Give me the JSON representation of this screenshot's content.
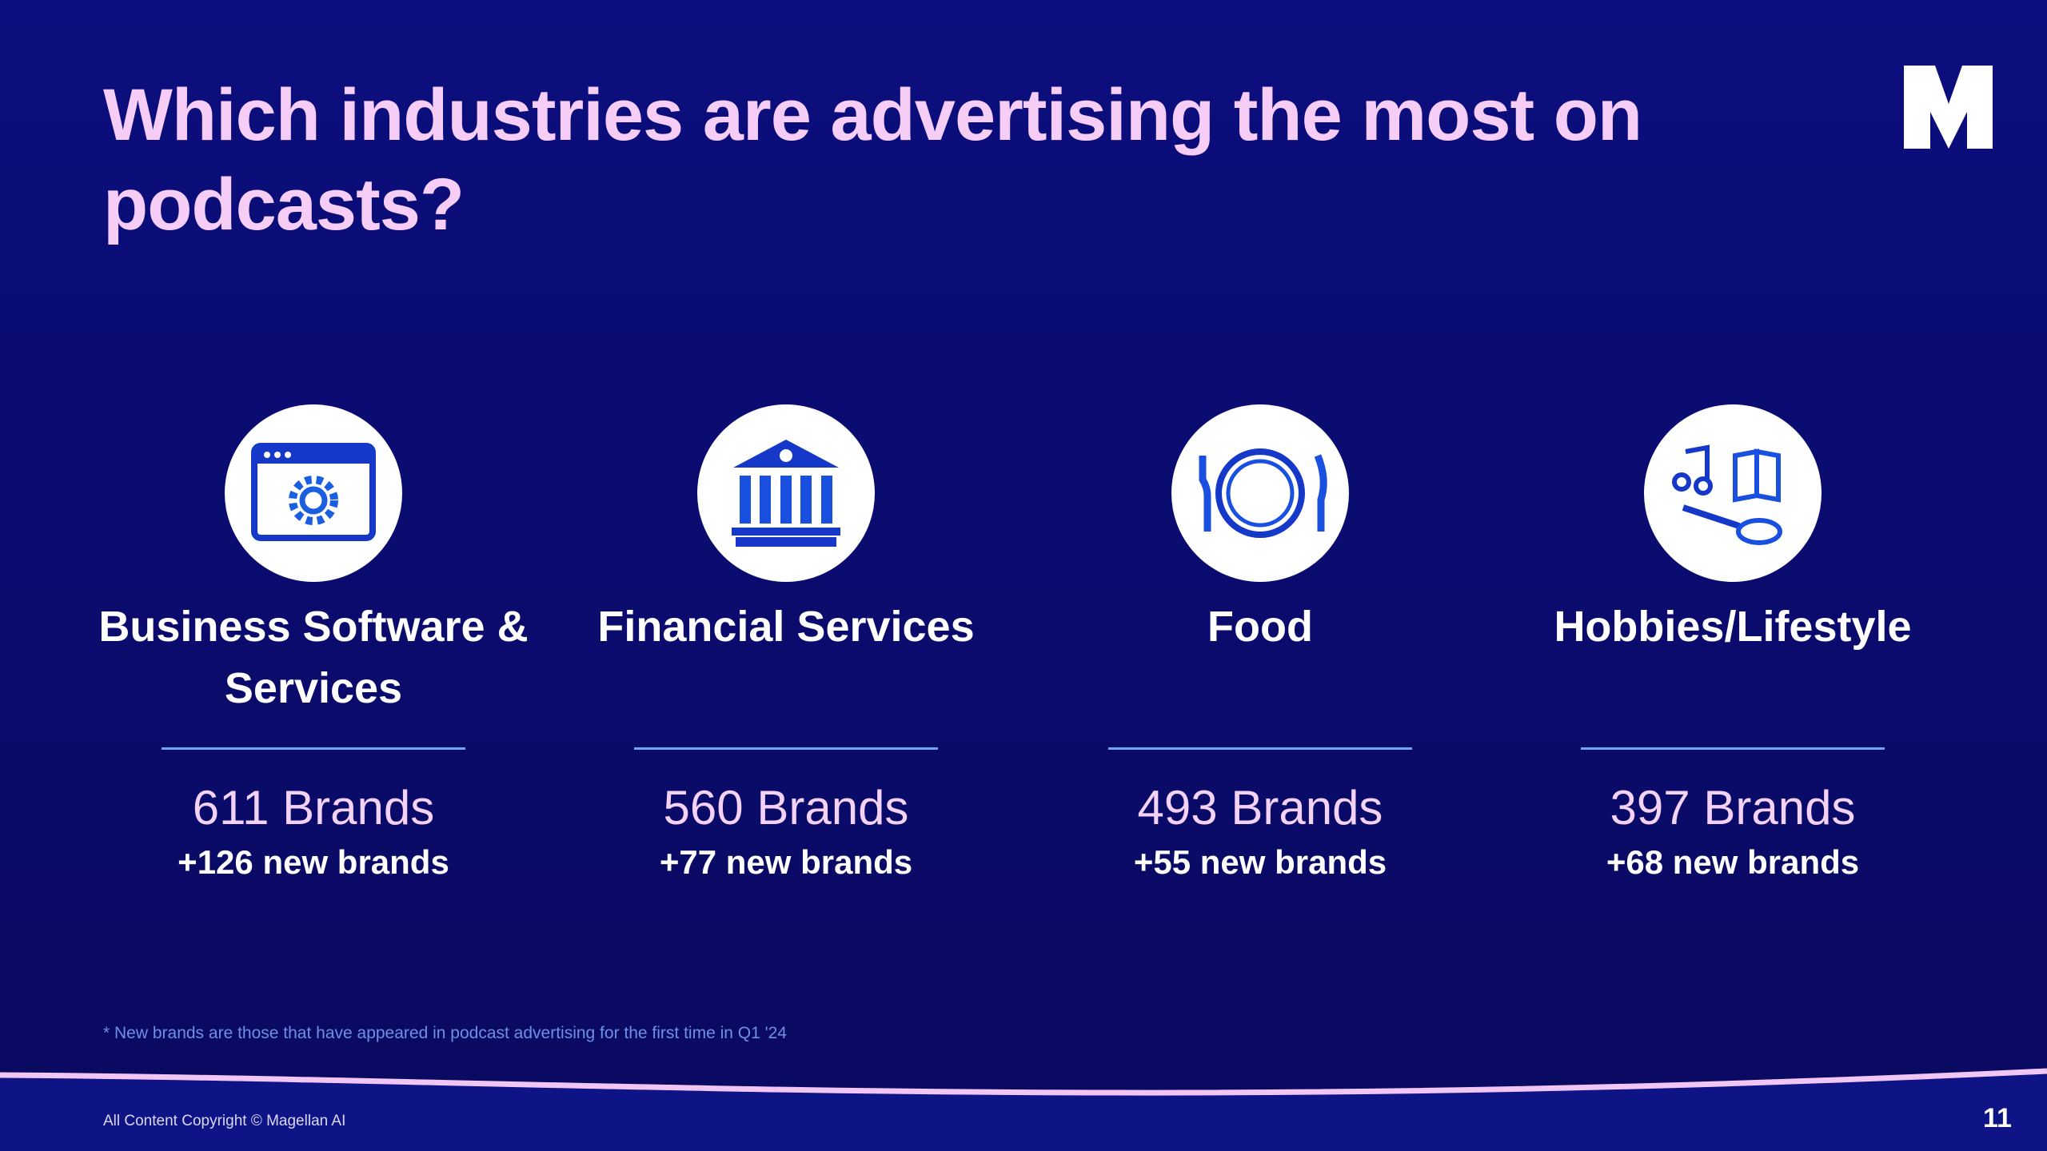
{
  "header": {
    "title": "Which industries are advertising the most on podcasts?"
  },
  "cards": [
    {
      "label": "Business Software & Services",
      "brands": "611 Brands",
      "new_brands": "+126 new brands"
    },
    {
      "label": "Financial Services",
      "brands": "560 Brands",
      "new_brands": "+77 new brands"
    },
    {
      "label": "Food",
      "brands": "493 Brands",
      "new_brands": "+55 new brands"
    },
    {
      "label": "Hobbies/Lifestyle",
      "brands": "397 Brands",
      "new_brands": "+68 new brands"
    }
  ],
  "footnote": "* New brands are those that have appeared in podcast advertising for the first time in Q1 '24",
  "footer": {
    "copyright": "All Content Copyright © Magellan AI",
    "page_number": "11"
  }
}
